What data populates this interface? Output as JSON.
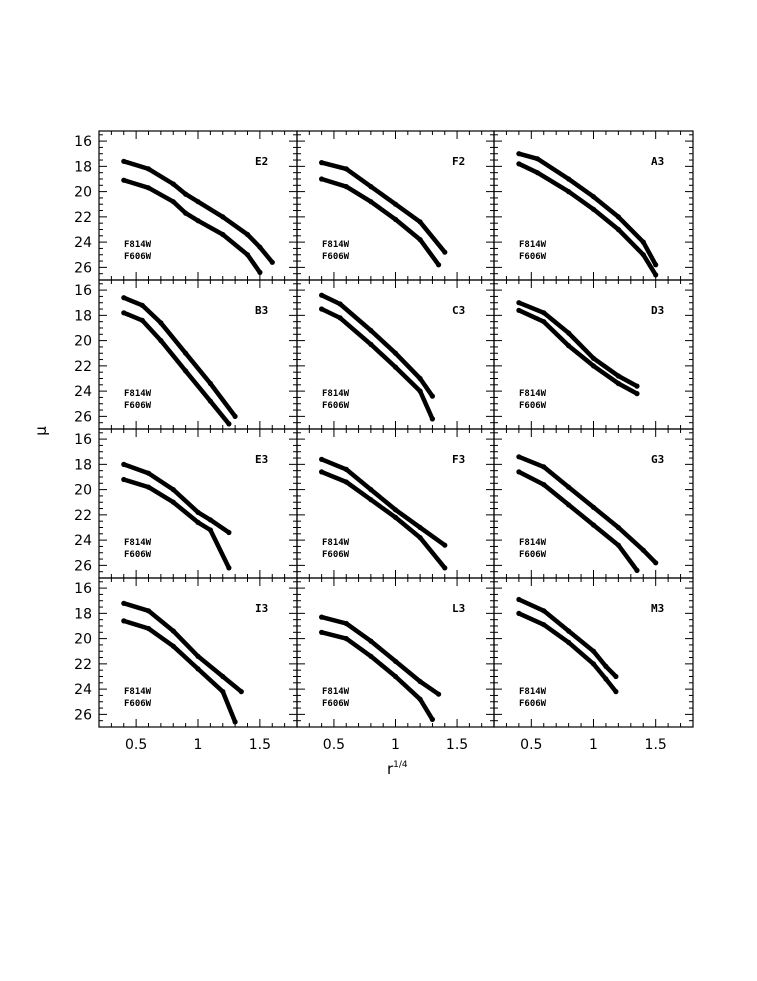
{
  "chart_data": {
    "type": "scatter",
    "layout": "4x3 grid of small-multiple panels sharing axes",
    "xlabel": "r",
    "xlabel_superscript": "1/4",
    "ylabel": "μ",
    "xlim": [
      0.2,
      1.8
    ],
    "ylim": [
      27,
      15.2
    ],
    "y_inverted": true,
    "x_ticks": [
      0.5,
      1,
      1.5
    ],
    "x_tick_labels": [
      "0.5",
      "1",
      "1.5"
    ],
    "y_ticks": [
      16,
      18,
      20,
      22,
      24,
      26
    ],
    "y_tick_labels": [
      "16",
      "18",
      "20",
      "22",
      "24",
      "26"
    ],
    "grid": false,
    "legend_lines": [
      "F814W",
      "F606W"
    ],
    "panels": [
      {
        "label": "E2",
        "series": [
          {
            "name": "F814W",
            "x": [
              0.4,
              0.6,
              0.8,
              0.9,
              1.0,
              1.2,
              1.4,
              1.5,
              1.6
            ],
            "y": [
              17.6,
              18.2,
              19.4,
              20.2,
              20.8,
              22.0,
              23.4,
              24.4,
              25.6
            ]
          },
          {
            "name": "F606W",
            "x": [
              0.4,
              0.6,
              0.8,
              0.9,
              1.0,
              1.2,
              1.4,
              1.5
            ],
            "y": [
              19.1,
              19.7,
              20.8,
              21.7,
              22.3,
              23.4,
              25.0,
              26.4
            ]
          }
        ]
      },
      {
        "label": "F2",
        "series": [
          {
            "name": "F814W",
            "x": [
              0.4,
              0.6,
              0.8,
              1.0,
              1.2,
              1.4
            ],
            "y": [
              17.7,
              18.2,
              19.6,
              21.0,
              22.4,
              24.8
            ]
          },
          {
            "name": "F606W",
            "x": [
              0.4,
              0.6,
              0.8,
              1.0,
              1.2,
              1.35
            ],
            "y": [
              19.0,
              19.6,
              20.8,
              22.2,
              23.8,
              25.8
            ]
          }
        ]
      },
      {
        "label": "A3",
        "series": [
          {
            "name": "F814W",
            "x": [
              0.4,
              0.55,
              0.8,
              1.0,
              1.2,
              1.4,
              1.5
            ],
            "y": [
              17.0,
              17.4,
              19.0,
              20.4,
              22.0,
              24.0,
              25.8
            ]
          },
          {
            "name": "F606W",
            "x": [
              0.4,
              0.55,
              0.8,
              1.0,
              1.2,
              1.4,
              1.5
            ],
            "y": [
              17.8,
              18.5,
              20.0,
              21.4,
              23.0,
              25.0,
              26.6
            ]
          }
        ]
      },
      {
        "label": "B3",
        "series": [
          {
            "name": "F814W",
            "x": [
              0.4,
              0.55,
              0.7,
              0.9,
              1.1,
              1.3
            ],
            "y": [
              16.6,
              17.2,
              18.6,
              21.0,
              23.4,
              26.0
            ]
          },
          {
            "name": "F606W",
            "x": [
              0.4,
              0.55,
              0.7,
              0.9,
              1.1,
              1.25
            ],
            "y": [
              17.8,
              18.4,
              20.0,
              22.4,
              24.8,
              26.6
            ]
          }
        ]
      },
      {
        "label": "C3",
        "series": [
          {
            "name": "F814W",
            "x": [
              0.4,
              0.55,
              0.8,
              1.0,
              1.2,
              1.3
            ],
            "y": [
              16.4,
              17.1,
              19.2,
              21.0,
              23.0,
              24.4
            ]
          },
          {
            "name": "F606W",
            "x": [
              0.4,
              0.55,
              0.8,
              1.0,
              1.2,
              1.3
            ],
            "y": [
              17.5,
              18.2,
              20.3,
              22.1,
              24.0,
              26.2
            ]
          }
        ]
      },
      {
        "label": "D3",
        "series": [
          {
            "name": "F814W",
            "x": [
              0.4,
              0.6,
              0.8,
              1.0,
              1.2,
              1.35
            ],
            "y": [
              17.0,
              17.8,
              19.4,
              21.4,
              22.8,
              23.6
            ]
          },
          {
            "name": "F606W",
            "x": [
              0.4,
              0.6,
              0.8,
              1.0,
              1.2,
              1.35
            ],
            "y": [
              17.6,
              18.5,
              20.4,
              22.0,
              23.4,
              24.2
            ]
          }
        ]
      },
      {
        "label": "E3",
        "series": [
          {
            "name": "F814W",
            "x": [
              0.4,
              0.6,
              0.8,
              1.0,
              1.1,
              1.25
            ],
            "y": [
              18.0,
              18.7,
              20.0,
              21.8,
              22.4,
              23.4
            ]
          },
          {
            "name": "F606W",
            "x": [
              0.4,
              0.6,
              0.8,
              1.0,
              1.1,
              1.25
            ],
            "y": [
              19.2,
              19.8,
              21.0,
              22.6,
              23.2,
              26.2
            ]
          }
        ]
      },
      {
        "label": "F3",
        "series": [
          {
            "name": "F814W",
            "x": [
              0.4,
              0.6,
              0.8,
              1.0,
              1.2,
              1.4
            ],
            "y": [
              17.6,
              18.4,
              20.0,
              21.6,
              23.0,
              24.4
            ]
          },
          {
            "name": "F606W",
            "x": [
              0.4,
              0.6,
              0.8,
              1.0,
              1.2,
              1.4
            ],
            "y": [
              18.6,
              19.4,
              20.8,
              22.2,
              23.8,
              26.2
            ]
          }
        ]
      },
      {
        "label": "G3",
        "series": [
          {
            "name": "F814W",
            "x": [
              0.4,
              0.6,
              0.8,
              1.0,
              1.2,
              1.4,
              1.5
            ],
            "y": [
              17.4,
              18.2,
              19.8,
              21.4,
              23.0,
              24.8,
              25.8
            ]
          },
          {
            "name": "F606W",
            "x": [
              0.4,
              0.6,
              0.8,
              1.0,
              1.2,
              1.35
            ],
            "y": [
              18.6,
              19.6,
              21.2,
              22.8,
              24.4,
              26.4
            ]
          }
        ]
      },
      {
        "label": "I3",
        "series": [
          {
            "name": "F814W",
            "x": [
              0.4,
              0.6,
              0.8,
              1.0,
              1.2,
              1.35
            ],
            "y": [
              17.2,
              17.8,
              19.4,
              21.4,
              23.0,
              24.2
            ]
          },
          {
            "name": "F606W",
            "x": [
              0.4,
              0.6,
              0.8,
              1.0,
              1.2,
              1.3
            ],
            "y": [
              18.6,
              19.2,
              20.6,
              22.4,
              24.2,
              26.6
            ]
          }
        ]
      },
      {
        "label": "L3",
        "series": [
          {
            "name": "F814W",
            "x": [
              0.4,
              0.6,
              0.8,
              1.0,
              1.2,
              1.35
            ],
            "y": [
              18.3,
              18.8,
              20.2,
              21.8,
              23.4,
              24.4
            ]
          },
          {
            "name": "F606W",
            "x": [
              0.4,
              0.6,
              0.8,
              1.0,
              1.2,
              1.3
            ],
            "y": [
              19.5,
              20.0,
              21.4,
              23.0,
              24.8,
              26.4
            ]
          }
        ]
      },
      {
        "label": "M3",
        "series": [
          {
            "name": "F814W",
            "x": [
              0.4,
              0.6,
              0.8,
              1.0,
              1.1,
              1.18
            ],
            "y": [
              16.9,
              17.8,
              19.4,
              21.0,
              22.2,
              23.0
            ]
          },
          {
            "name": "F606W",
            "x": [
              0.4,
              0.6,
              0.8,
              1.0,
              1.1,
              1.18
            ],
            "y": [
              18.0,
              18.9,
              20.3,
              22.0,
              23.2,
              24.2
            ]
          }
        ]
      }
    ]
  }
}
